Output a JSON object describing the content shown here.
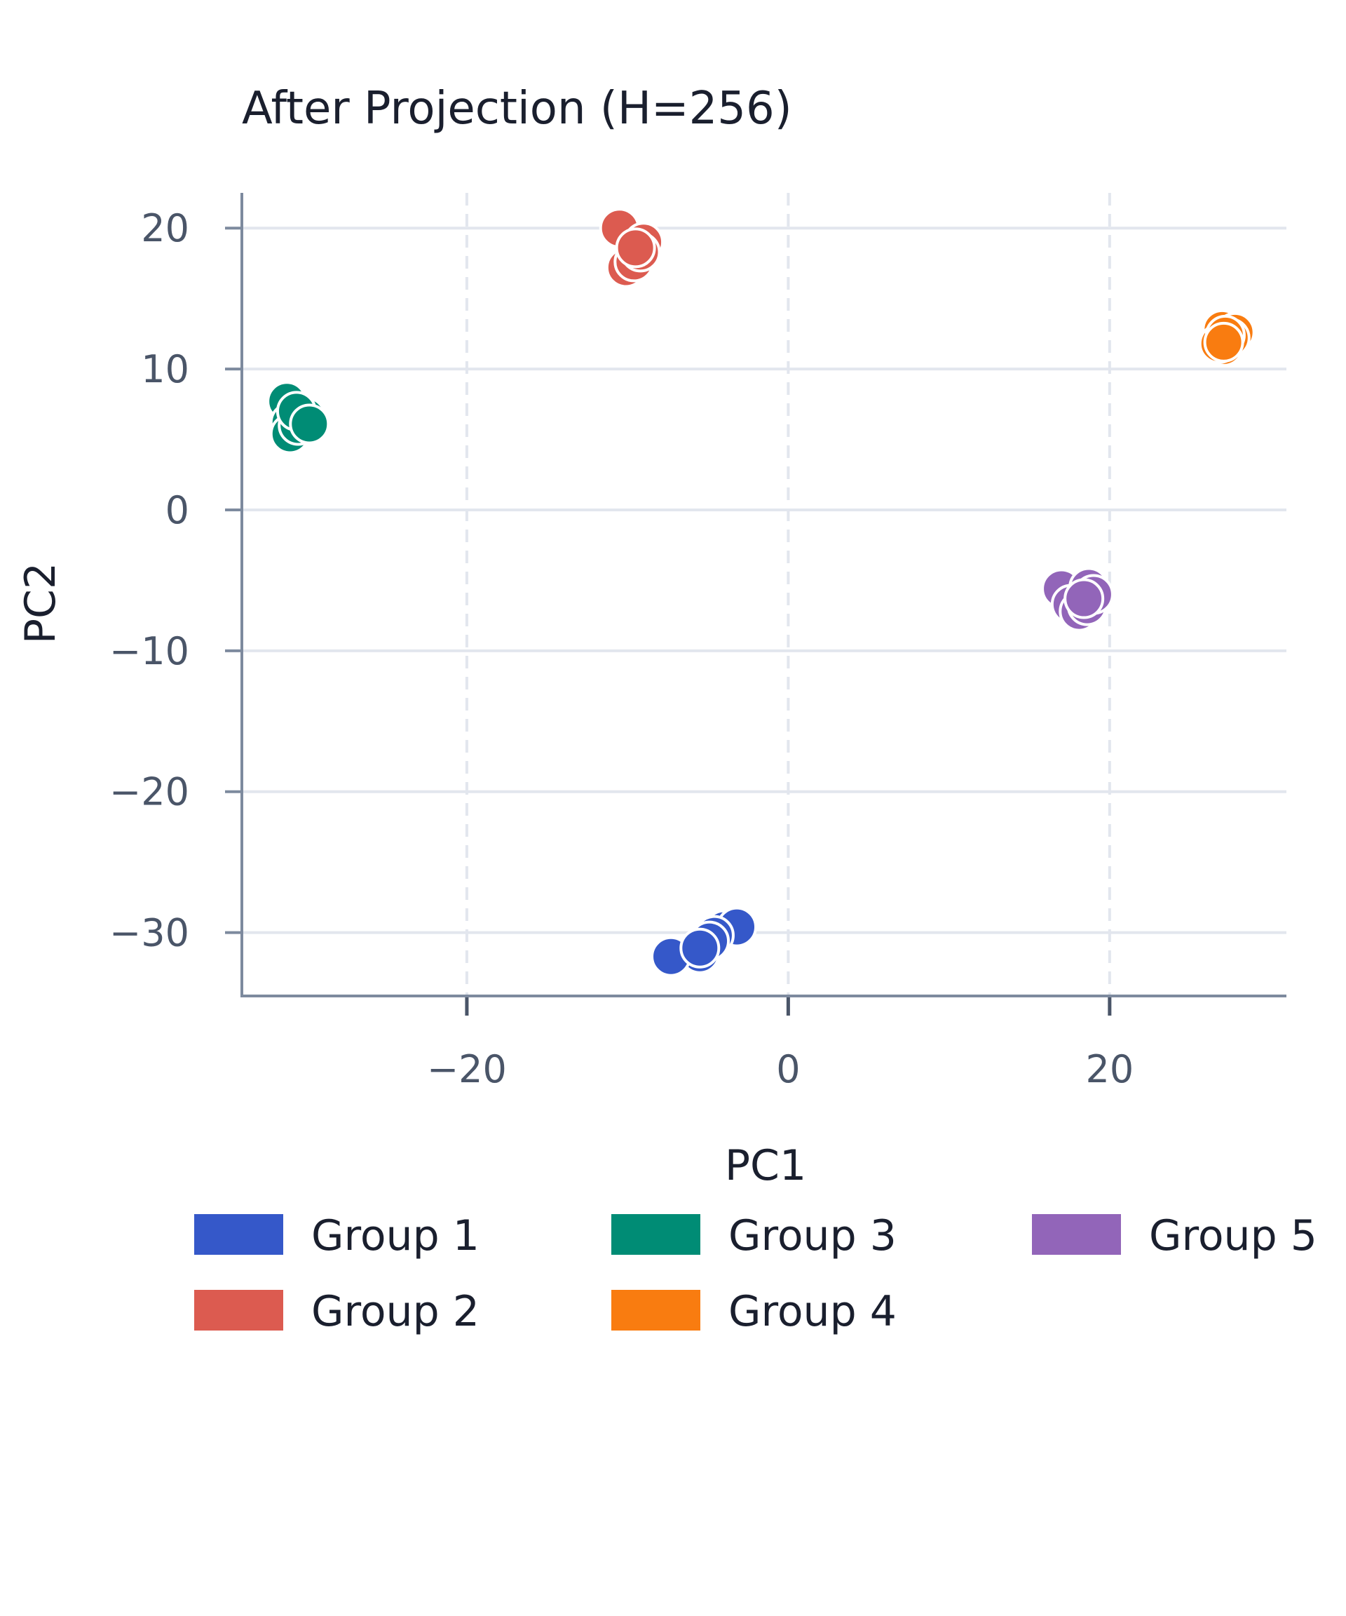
{
  "chart_data": {
    "type": "scatter",
    "title": "After Projection (H=256)",
    "xlabel": "PC1",
    "ylabel": "PC2",
    "xlim": [
      -34,
      31
    ],
    "ylim": [
      -34.5,
      22.5
    ],
    "xticks": [
      -20,
      0,
      20
    ],
    "yticks": [
      20,
      10,
      0,
      -10,
      -20,
      -30
    ],
    "grid": {
      "x": "dashed",
      "y": "solid"
    },
    "legend_position": "bottom",
    "series": [
      {
        "name": "Group 1",
        "color": "#3558c9",
        "points": [
          [
            -5.5,
            -31.5
          ],
          [
            -7.3,
            -31.7
          ],
          [
            -4.0,
            -29.8
          ],
          [
            -3.2,
            -29.6
          ],
          [
            -4.6,
            -30.2
          ],
          [
            -4.9,
            -30.6
          ],
          [
            -5.5,
            -31.1
          ]
        ]
      },
      {
        "name": "Group 2",
        "color": "#dc5b50",
        "points": [
          [
            -10.5,
            20.0
          ],
          [
            -10.1,
            17.2
          ],
          [
            -9.1,
            18.8
          ],
          [
            -9.6,
            17.6
          ],
          [
            -9.0,
            19.0
          ],
          [
            -9.2,
            18.3
          ],
          [
            -9.5,
            18.6
          ]
        ]
      },
      {
        "name": "Group 3",
        "color": "#008c75",
        "points": [
          [
            -31.2,
            7.7
          ],
          [
            -31.0,
            6.2
          ],
          [
            -31.0,
            5.4
          ],
          [
            -30.0,
            6.6
          ],
          [
            -30.5,
            6.0
          ],
          [
            -30.6,
            7.0
          ],
          [
            -29.8,
            6.1
          ]
        ]
      },
      {
        "name": "Group 4",
        "color": "#f97c10",
        "points": [
          [
            27.0,
            12.8
          ],
          [
            27.8,
            12.6
          ],
          [
            27.1,
            11.6
          ],
          [
            26.8,
            11.8
          ],
          [
            27.5,
            12.2
          ],
          [
            27.2,
            12.4
          ],
          [
            27.1,
            11.9
          ]
        ]
      },
      {
        "name": "Group 5",
        "color": "#9265b9",
        "points": [
          [
            17.0,
            -5.6
          ],
          [
            18.7,
            -5.5
          ],
          [
            17.6,
            -6.7
          ],
          [
            18.1,
            -7.2
          ],
          [
            18.6,
            -6.8
          ],
          [
            19.0,
            -6.0
          ],
          [
            18.4,
            -6.3
          ]
        ]
      }
    ]
  }
}
